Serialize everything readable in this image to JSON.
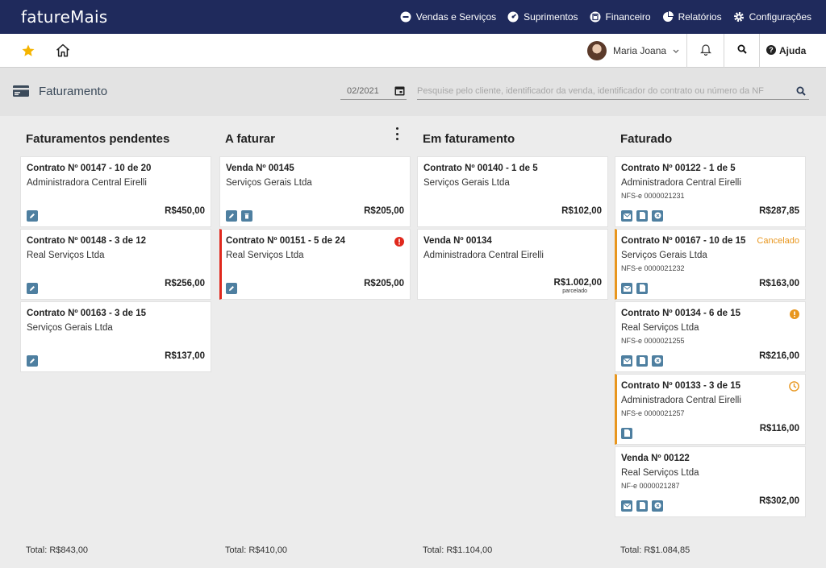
{
  "app": {
    "logo_text": "fatureMais"
  },
  "topnav": {
    "items": [
      {
        "label": "Vendas e Serviços",
        "icon": "minus-circle-icon"
      },
      {
        "label": "Suprimentos",
        "icon": "gauge-icon"
      },
      {
        "label": "Financeiro",
        "icon": "calculator-icon"
      },
      {
        "label": "Relatórios",
        "icon": "pie-chart-icon"
      },
      {
        "label": "Configurações",
        "icon": "gear-icon"
      }
    ]
  },
  "subbar": {
    "user_name": "Maria Joana",
    "help_label": "Ajuda"
  },
  "page": {
    "title": "Faturamento",
    "date_value": "02/2021",
    "search_placeholder": "Pesquise pelo cliente, identificador da venda, identificador do contrato ou número da NF"
  },
  "columns": [
    {
      "title": "Faturamentos pendentes",
      "total": "Total: R$843,00",
      "cards": [
        {
          "title": "Contrato Nº 00147 - 10 de 20",
          "client": "Administradora Central Eirelli",
          "amount": "R$450,00",
          "actions": [
            "edit"
          ]
        },
        {
          "title": "Contrato Nº 00148 - 3 de 12",
          "client": "Real Serviços Ltda",
          "amount": "R$256,00",
          "actions": [
            "edit"
          ]
        },
        {
          "title": "Contrato Nº 00163 - 3 de 15",
          "client": "Serviços Gerais Ltda",
          "amount": "R$137,00",
          "actions": [
            "edit"
          ]
        }
      ]
    },
    {
      "title": "A faturar",
      "total": "Total: R$410,00",
      "cards": [
        {
          "title": "Venda Nº 00145",
          "client": "Serviços Gerais Ltda",
          "amount": "R$205,00",
          "actions": [
            "edit",
            "delete"
          ]
        },
        {
          "title": "Contrato Nº 00151 - 5 de 24",
          "client": "Real Serviços Ltda",
          "amount": "R$205,00",
          "actions": [
            "edit"
          ],
          "status": "error"
        }
      ]
    },
    {
      "title": "Em faturamento",
      "total": "Total: R$1.104,00",
      "cards": [
        {
          "title": "Contrato Nº 00140 - 1 de 5",
          "client": "Serviços Gerais Ltda",
          "amount": "R$102,00",
          "actions": []
        },
        {
          "title": "Venda Nº 00134",
          "client": "Administradora Central Eirelli",
          "amount": "R$1.002,00",
          "sub": "parcelado",
          "actions": []
        }
      ]
    },
    {
      "title": "Faturado",
      "total": "Total: R$1.084,85",
      "cards": [
        {
          "title": "Contrato Nº 00122 - 1 de 5",
          "client": "Administradora Central Eirelli",
          "nf": "NFS-e 0000021231",
          "amount": "R$287,85",
          "actions": [
            "mail",
            "doc",
            "cancel"
          ]
        },
        {
          "title": "Contrato Nº 00167 - 10 de 15",
          "client": "Serviços Gerais Ltda",
          "nf": "NFS-e 0000021232",
          "amount": "R$163,00",
          "actions": [
            "mail",
            "doc"
          ],
          "status_text": "Cancelado"
        },
        {
          "title": "Contrato Nº 00134 - 6 de 15",
          "client": "Real Serviços Ltda",
          "nf": "NFS-e 0000021255",
          "amount": "R$216,00",
          "actions": [
            "mail",
            "doc",
            "cancel"
          ],
          "status": "warning"
        },
        {
          "title": "Contrato Nº 00133 - 3 de 15",
          "client": "Administradora Central Eirelli",
          "nf": "NFS-e 0000021257",
          "amount": "R$116,00",
          "actions": [
            "doc"
          ],
          "status": "clock"
        },
        {
          "title": "Venda Nº 00122",
          "client": "Real Serviços Ltda",
          "nf": "NF-e 0000021287",
          "amount": "R$302,00",
          "actions": [
            "mail",
            "doc",
            "cancel"
          ]
        }
      ]
    }
  ],
  "colors": {
    "topbar": "#1f2a5c",
    "action_button": "#4e7fa0",
    "error": "#e0281d",
    "warning": "#e8961e"
  }
}
